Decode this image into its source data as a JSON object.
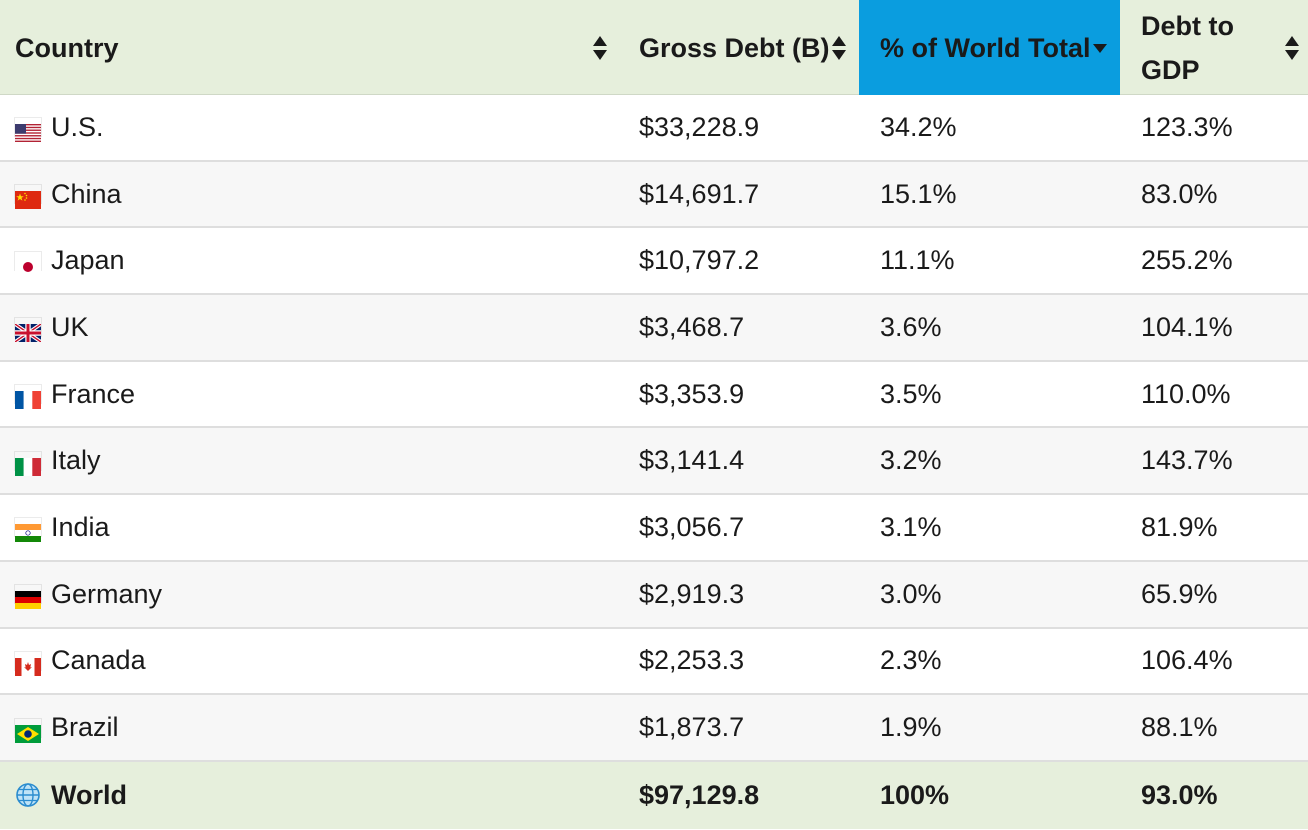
{
  "header": {
    "country": "Country",
    "gross_debt": "Gross Debt (B)",
    "pct_world": "% of World Total",
    "debt_gdp_line1": "Debt to",
    "debt_gdp_line2": "GDP"
  },
  "colors": {
    "header_bg": "#e6efdc",
    "active_sort_bg": "#0a9ddf",
    "row_alt_bg": "#f7f7f7"
  },
  "rows": [
    {
      "flag": "us-flag-icon",
      "country": "U.S.",
      "gross_debt": "$33,228.9",
      "pct_world": "34.2%",
      "debt_gdp": "123.3%"
    },
    {
      "flag": "china-flag-icon",
      "country": "China",
      "gross_debt": "$14,691.7",
      "pct_world": "15.1%",
      "debt_gdp": "83.0%"
    },
    {
      "flag": "japan-flag-icon",
      "country": "Japan",
      "gross_debt": "$10,797.2",
      "pct_world": "11.1%",
      "debt_gdp": "255.2%"
    },
    {
      "flag": "uk-flag-icon",
      "country": "UK",
      "gross_debt": "$3,468.7",
      "pct_world": "3.6%",
      "debt_gdp": "104.1%"
    },
    {
      "flag": "france-flag-icon",
      "country": "France",
      "gross_debt": "$3,353.9",
      "pct_world": "3.5%",
      "debt_gdp": "110.0%"
    },
    {
      "flag": "italy-flag-icon",
      "country": "Italy",
      "gross_debt": "$3,141.4",
      "pct_world": "3.2%",
      "debt_gdp": "143.7%"
    },
    {
      "flag": "india-flag-icon",
      "country": "India",
      "gross_debt": "$3,056.7",
      "pct_world": "3.1%",
      "debt_gdp": "81.9%"
    },
    {
      "flag": "germany-flag-icon",
      "country": "Germany",
      "gross_debt": "$2,919.3",
      "pct_world": "3.0%",
      "debt_gdp": "65.9%"
    },
    {
      "flag": "canada-flag-icon",
      "country": "Canada",
      "gross_debt": "$2,253.3",
      "pct_world": "2.3%",
      "debt_gdp": "106.4%"
    },
    {
      "flag": "brazil-flag-icon",
      "country": "Brazil",
      "gross_debt": "$1,873.7",
      "pct_world": "1.9%",
      "debt_gdp": "88.1%"
    }
  ],
  "total": {
    "icon": "globe-icon",
    "country": "World",
    "gross_debt": "$97,129.8",
    "pct_world": "100%",
    "debt_gdp": "93.0%"
  }
}
